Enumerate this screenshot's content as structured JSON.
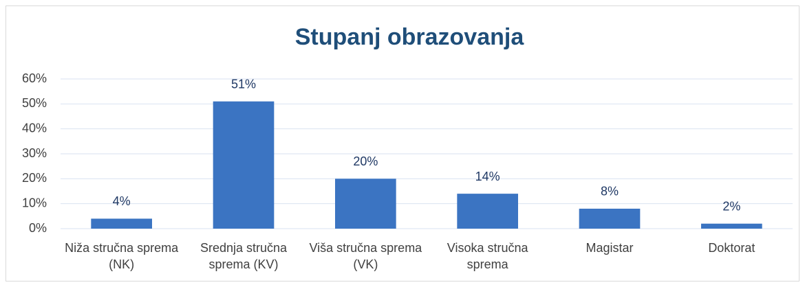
{
  "chart_data": {
    "type": "bar",
    "title": "Stupanj obrazovanja",
    "categories": [
      "Niža stručna sprema (NK)",
      "Srednja stručna sprema (KV)",
      "Viša stručna sprema (VK)",
      "Visoka stručna sprema",
      "Magistar",
      "Doktorat"
    ],
    "values": [
      4,
      51,
      20,
      14,
      8,
      2
    ],
    "value_labels": [
      "4%",
      "51%",
      "20%",
      "14%",
      "8%",
      "2%"
    ],
    "color": "#3b74c2",
    "ylim": [
      0,
      60
    ],
    "yticks": [
      {
        "value": 0,
        "label": "0%"
      },
      {
        "value": 10,
        "label": "10%"
      },
      {
        "value": 20,
        "label": "20%"
      },
      {
        "value": 30,
        "label": "30%"
      },
      {
        "value": 40,
        "label": "40%"
      },
      {
        "value": 50,
        "label": "50%"
      },
      {
        "value": 60,
        "label": "60%"
      }
    ],
    "grid": true
  }
}
